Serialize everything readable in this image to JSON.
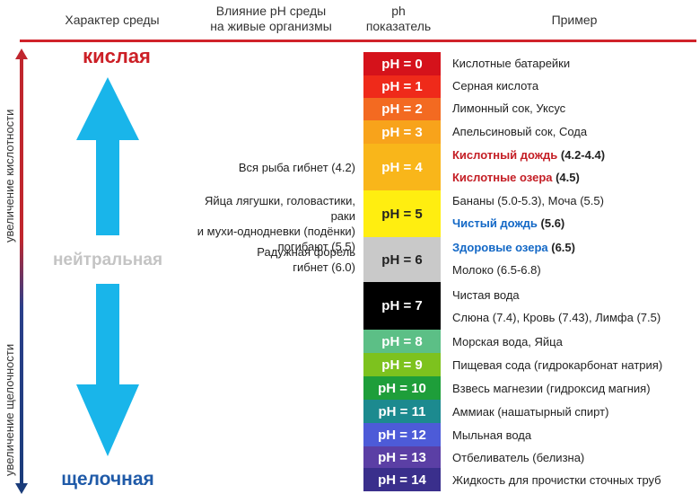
{
  "header": {
    "character": "Характер среды",
    "influence": "Влияние pH среды\nна живые организмы",
    "ph": "ph\nпоказатель",
    "example": "Пример"
  },
  "side_labels": {
    "acidity_increase": "увеличение кислотности",
    "alkalinity_increase": "увеличение щелочности"
  },
  "zones": {
    "acid": "кислая",
    "neutral": "нейтральная",
    "alkaline": "щелочная"
  },
  "colors": {
    "acid_red": "#cc1f26",
    "alkaline_blue": "#1f5aa8",
    "arrow_cyan": "#19b5ea",
    "neutral_grey": "#c4c4c4"
  },
  "ph_scale": [
    {
      "label": "pH = 0",
      "color": "#d5121b"
    },
    {
      "label": "pH = 1",
      "color": "#ef2a1a"
    },
    {
      "label": "pH = 2",
      "color": "#f36a21"
    },
    {
      "label": "pH = 3",
      "color": "#f8a31b"
    },
    {
      "label": "pH = 4",
      "color": "#f9b61a"
    },
    {
      "label": "pH = 5",
      "color": "#ffee10",
      "dark": true
    },
    {
      "label": "pH = 6",
      "color": "#c9c9c9",
      "dark": true
    },
    {
      "label": "pH = 7",
      "color": "#000000"
    },
    {
      "label": "pH = 8",
      "color": "#5cbf86"
    },
    {
      "label": "pH = 9",
      "color": "#7dc21e"
    },
    {
      "label": "pH = 10",
      "color": "#1e9e3a"
    },
    {
      "label": "pH = 11",
      "color": "#1c8a8f"
    },
    {
      "label": "pH = 12",
      "color": "#4d5bd8"
    },
    {
      "label": "pH = 13",
      "color": "#5b3fa5"
    },
    {
      "label": "pH = 14",
      "color": "#3a2f8c"
    }
  ],
  "influence": {
    "ph4": "Вся рыба гибнет (4.2)",
    "ph5": "Яйца лягушки, головастики, раки\nи мухи-однодневки (подёнки)\nпогибают (5.5)",
    "ph6": "Радужная форель\nгибнет (6.0)"
  },
  "examples": {
    "ph0": "Кислотные батарейки",
    "ph1": "Серная кислота",
    "ph2": "Лимонный сок, Уксус",
    "ph3": "Апельсиновый сок, Сода",
    "ph4a_bold": "Кислотный дождь",
    "ph4a_val": " (4.2-4.4)",
    "ph4b_bold": "Кислотные озера",
    "ph4b_val": " (4.5)",
    "ph5a": "Бананы (5.0-5.3), Моча (5.5)",
    "ph5b_bold": "Чистый дождь",
    "ph5b_val": " (5.6)",
    "ph6a_bold": "Здоровые озера",
    "ph6a_val": " (6.5)",
    "ph6b": "Молоко (6.5-6.8)",
    "ph7a": "Чистая вода",
    "ph7b": "Слюна (7.4), Кровь (7.43), Лимфа (7.5)",
    "ph8": "Морская вода, Яйца",
    "ph9": "Пищевая сода (гидрокарбонат натрия)",
    "ph10": "Взвесь магнезии (гидроксид магния)",
    "ph11": "Аммиак (нашатырный спирт)",
    "ph12": "Мыльная вода",
    "ph13": "Отбеливатель (белизна)",
    "ph14": "Жидкость для прочистки сточных труб"
  }
}
